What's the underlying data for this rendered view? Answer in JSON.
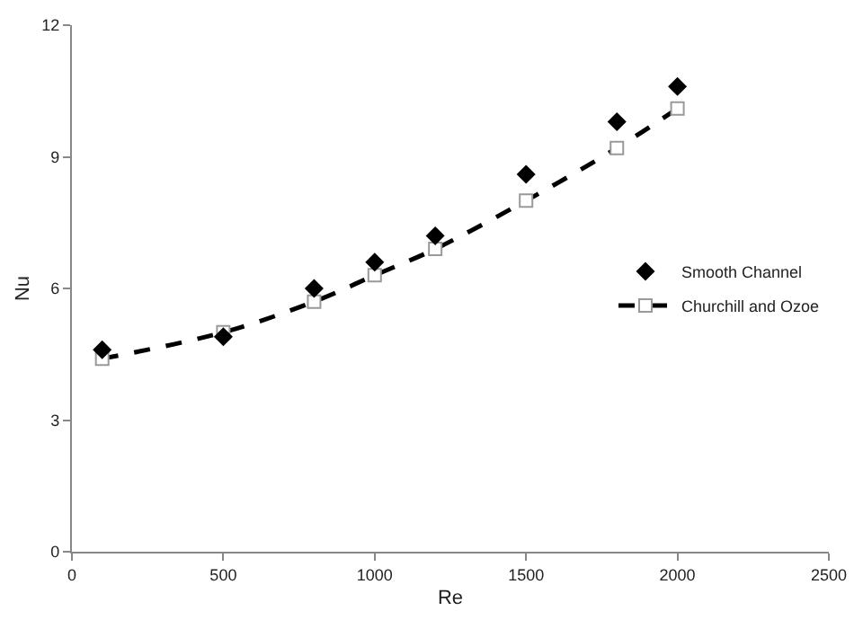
{
  "chart_data": {
    "type": "scatter",
    "xlabel": "Re",
    "ylabel": "Nu",
    "x": [
      100,
      500,
      800,
      1000,
      1200,
      1500,
      1800,
      2000
    ],
    "series": [
      {
        "name": "Smooth Channel",
        "color": "#000000",
        "marker": "diamond",
        "values": [
          4.6,
          4.9,
          6.0,
          6.6,
          7.2,
          8.6,
          9.8,
          10.6
        ]
      },
      {
        "name": "Churchill and Ozoe",
        "type": "line",
        "color": "#000000",
        "marker": "square",
        "line_style": "dashed",
        "values": [
          4.4,
          5.0,
          5.7,
          6.3,
          6.9,
          8.0,
          9.2,
          10.1
        ]
      }
    ],
    "xlim": [
      0,
      2500
    ],
    "xticks": [
      0,
      500,
      1000,
      1500,
      2000,
      2500
    ],
    "ylim": [
      0,
      12
    ],
    "yticks": [
      0,
      3,
      6,
      9,
      12
    ],
    "legend": "right"
  }
}
